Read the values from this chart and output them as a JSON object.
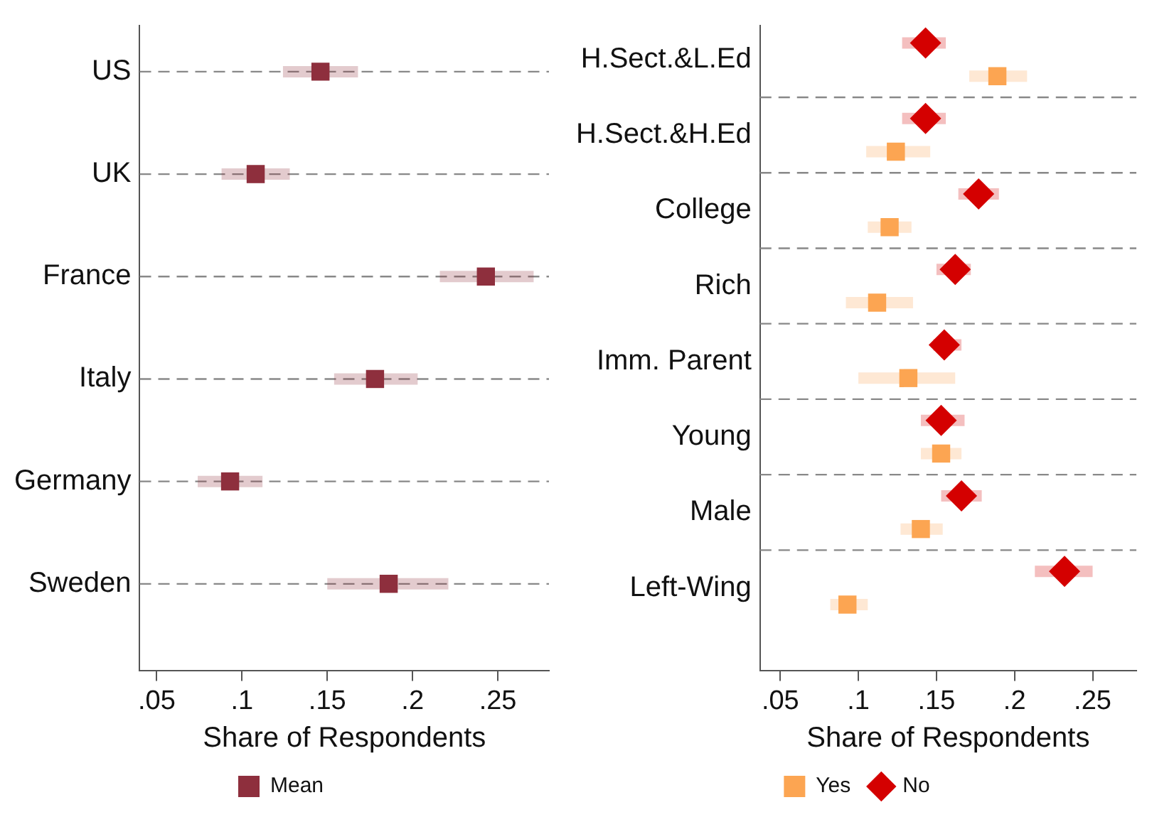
{
  "chart_data": [
    {
      "type": "scatter",
      "orientation": "horizontal",
      "xlabel": "Share of Respondents",
      "categories": [
        "US",
        "UK",
        "France",
        "Italy",
        "Germany",
        "Sweden"
      ],
      "series": [
        {
          "name": "Mean",
          "color": "#8e2f3d",
          "values": [
            0.146,
            0.108,
            0.243,
            0.178,
            0.093,
            0.186
          ],
          "errors": [
            [
              0.124,
              0.168
            ],
            [
              0.088,
              0.128
            ],
            [
              0.216,
              0.271
            ],
            [
              0.154,
              0.203
            ],
            [
              0.074,
              0.112
            ],
            [
              0.15,
              0.221
            ]
          ]
        }
      ],
      "xlim": [
        0.04,
        0.28
      ],
      "xticks": [
        {
          "value": 0.05,
          "label": ".05"
        },
        {
          "value": 0.1,
          "label": ".1"
        },
        {
          "value": 0.15,
          "label": ".15"
        },
        {
          "value": 0.2,
          "label": ".2"
        },
        {
          "value": 0.25,
          "label": ".25"
        }
      ],
      "grid": "y",
      "legend": "bottom",
      "marker": "square"
    },
    {
      "type": "scatter",
      "orientation": "horizontal",
      "xlabel": "Share of Respondents",
      "categories": [
        "H.Sect.&L.Ed",
        "H.Sect.&H.Ed",
        "College",
        "Rich",
        "Imm. Parent",
        "Young",
        "Male",
        "Left-Wing"
      ],
      "series": [
        {
          "name": "Yes",
          "color": "#fca552",
          "marker": "square",
          "values": [
            0.189,
            0.124,
            0.12,
            0.112,
            0.132,
            0.153,
            0.14,
            0.093
          ],
          "errors": [
            [
              0.171,
              0.208
            ],
            [
              0.105,
              0.146
            ],
            [
              0.106,
              0.134
            ],
            [
              0.092,
              0.135
            ],
            [
              0.1,
              0.162
            ],
            [
              0.14,
              0.166
            ],
            [
              0.127,
              0.154
            ],
            [
              0.082,
              0.106
            ]
          ]
        },
        {
          "name": "No",
          "color": "#d40000",
          "marker": "diamond",
          "values": [
            0.143,
            0.143,
            0.177,
            0.162,
            0.155,
            0.153,
            0.166,
            0.232
          ],
          "errors": [
            [
              0.128,
              0.156
            ],
            [
              0.128,
              0.156
            ],
            [
              0.164,
              0.19
            ],
            [
              0.15,
              0.172
            ],
            [
              0.148,
              0.166
            ],
            [
              0.14,
              0.168
            ],
            [
              0.153,
              0.179
            ],
            [
              0.213,
              0.25
            ]
          ]
        }
      ],
      "xlim": [
        0.037,
        0.278
      ],
      "xticks": [
        {
          "value": 0.05,
          "label": ".05"
        },
        {
          "value": 0.1,
          "label": ".1"
        },
        {
          "value": 0.15,
          "label": ".15"
        },
        {
          "value": 0.2,
          "label": ".2"
        },
        {
          "value": 0.25,
          "label": ".25"
        }
      ],
      "grid": "y",
      "legend": "bottom"
    }
  ]
}
